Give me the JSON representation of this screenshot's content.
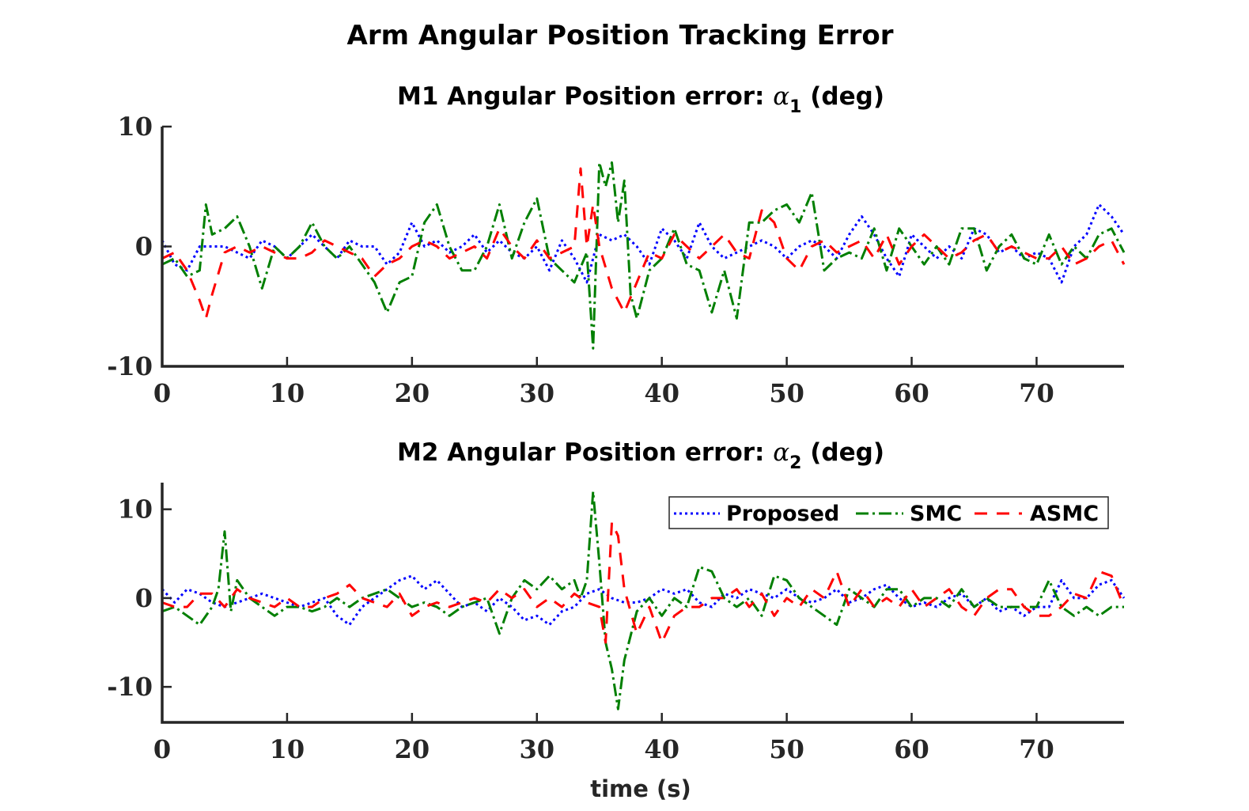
{
  "figure_title": "Arm Angular Position Tracking Error",
  "chart_data": [
    {
      "type": "line",
      "title_prefix": "M1 Angular Position error: ",
      "title_symbol": "α",
      "title_subscript": "1",
      "title_suffix": " (deg)",
      "xlabel": "",
      "ylabel": "",
      "xlim": [
        0,
        77
      ],
      "ylim": [
        -10,
        10
      ],
      "xticks": [
        0,
        10,
        20,
        30,
        40,
        50,
        60,
        70
      ],
      "yticks": [
        -10,
        0,
        10
      ],
      "xtick_labels": [
        "0",
        "10",
        "20",
        "30",
        "40",
        "50",
        "60",
        "70"
      ],
      "ytick_labels": [
        "-10",
        "0",
        "10"
      ],
      "grid": false,
      "legend": false,
      "series": [
        {
          "name": "Proposed",
          "color": "#0000ff",
          "style": "dotted",
          "x": [
            0,
            1,
            2,
            3,
            4,
            5,
            6,
            7,
            8,
            9,
            10,
            11,
            12,
            13,
            14,
            15,
            16,
            17,
            18,
            19,
            20,
            21,
            22,
            23,
            24,
            25,
            26,
            27,
            28,
            29,
            30,
            31,
            32,
            33,
            34,
            35,
            36,
            37,
            38,
            39,
            40,
            41,
            42,
            43,
            44,
            45,
            46,
            47,
            48,
            49,
            50,
            51,
            52,
            53,
            54,
            55,
            56,
            57,
            58,
            59,
            60,
            61,
            62,
            63,
            64,
            65,
            66,
            67,
            68,
            69,
            70,
            71,
            72,
            73,
            74,
            75,
            76,
            77
          ],
          "y": [
            0.5,
            -1.5,
            -2,
            0,
            0,
            0,
            -0.5,
            -1,
            0.5,
            0,
            -1,
            0,
            1,
            0,
            -1,
            0.5,
            0,
            0,
            -1.5,
            -0.5,
            2,
            0,
            0.5,
            -0.5,
            0,
            1,
            -0.5,
            0.5,
            -0.5,
            -1,
            0,
            -2,
            0.5,
            -1,
            -3,
            1,
            0.5,
            1,
            0,
            -1.5,
            1.5,
            0.5,
            -1,
            2,
            0,
            -1,
            -0.5,
            0,
            0.5,
            0,
            -1,
            0,
            0.5,
            0,
            -1,
            1,
            2.5,
            1,
            -1,
            -2.5,
            1,
            0,
            -1,
            0,
            -1,
            1.5,
            1,
            -0.5,
            0,
            -1,
            -0.5,
            -1,
            -3,
            0,
            1,
            3.5,
            2.5,
            1
          ]
        },
        {
          "name": "SMC",
          "color": "#007f00",
          "style": "dashdot",
          "x": [
            0,
            1,
            2,
            3,
            3.5,
            4,
            5,
            6,
            7,
            8,
            9,
            10,
            11,
            12,
            13,
            14,
            15,
            16,
            17,
            18,
            19,
            20,
            21,
            22,
            23,
            24,
            25,
            26,
            27,
            28,
            29,
            30,
            31,
            32,
            33,
            34,
            34.5,
            35,
            35.5,
            36,
            36.5,
            37,
            37.5,
            38,
            39,
            40,
            41,
            42,
            43,
            44,
            45,
            46,
            47,
            48,
            49,
            50,
            51,
            52,
            53,
            54,
            55,
            56,
            57,
            58,
            59,
            60,
            61,
            62,
            63,
            64,
            65,
            66,
            67,
            68,
            69,
            70,
            71,
            72,
            73,
            74,
            75,
            76,
            77
          ],
          "y": [
            -1.5,
            -1,
            -2.5,
            -2,
            3.5,
            1,
            1.5,
            2.5,
            0,
            -3.5,
            0,
            -1,
            0,
            2,
            0,
            -1,
            0,
            -1.5,
            -3,
            -5.5,
            -3,
            -2.5,
            2,
            3.5,
            0,
            -2,
            -2,
            0,
            3.5,
            -1,
            2,
            4,
            -1,
            -2,
            -3,
            -0.5,
            -8.5,
            7,
            5,
            7,
            2,
            5.5,
            -4,
            -6,
            -2,
            -1,
            1.5,
            -1.5,
            -2,
            -5.5,
            -2,
            -6,
            2,
            2,
            3,
            3.5,
            2,
            4.5,
            -2,
            -1,
            -0.5,
            -1,
            1.5,
            -2,
            1.5,
            0,
            -1.5,
            0,
            -1.5,
            1.5,
            1.5,
            -2,
            0,
            1,
            -1,
            -1.5,
            1,
            -1.5,
            0,
            -1,
            1,
            1.5,
            -0.5
          ]
        },
        {
          "name": "ASMC",
          "color": "#ff0000",
          "style": "dashed",
          "x": [
            0,
            1,
            2,
            3,
            3.5,
            4,
            5,
            6,
            7,
            8,
            9,
            10,
            11,
            12,
            13,
            14,
            15,
            16,
            17,
            18,
            19,
            20,
            21,
            22,
            23,
            24,
            25,
            26,
            27,
            28,
            29,
            30,
            31,
            32,
            33,
            33.5,
            34,
            34.5,
            35,
            36,
            37,
            38,
            39,
            40,
            41,
            42,
            43,
            44,
            45,
            46,
            47,
            48,
            49,
            50,
            51,
            52,
            53,
            54,
            55,
            56,
            57,
            58,
            59,
            60,
            61,
            62,
            63,
            64,
            65,
            66,
            67,
            68,
            69,
            70,
            71,
            72,
            73,
            74,
            75,
            76,
            77
          ],
          "y": [
            -1,
            -0.5,
            -2,
            -4.5,
            -6,
            -4,
            -0.5,
            0,
            -0.5,
            0,
            -0.5,
            -1,
            -1,
            -0.5,
            0.5,
            0,
            -0.5,
            -1,
            -2.5,
            -1.5,
            -1,
            0,
            0.5,
            0,
            -1,
            -0.5,
            0,
            -1,
            1.5,
            0,
            -1,
            0.5,
            -1,
            -0.5,
            0,
            6.5,
            0,
            3.5,
            0,
            -3.5,
            -5.5,
            -3,
            -0.5,
            -1,
            1,
            0,
            -1,
            0,
            1,
            -0.5,
            -1,
            3,
            2,
            -1,
            -2,
            0,
            0.5,
            -0.5,
            0,
            0.5,
            -1,
            1,
            -1.5,
            0,
            1,
            0,
            -1,
            -0.5,
            0.5,
            1,
            -0.5,
            0,
            -0.5,
            -1,
            -1,
            0,
            -1.5,
            -1,
            0,
            0.5,
            -1.5
          ]
        }
      ]
    },
    {
      "type": "line",
      "title_prefix": "M2 Angular Position error: ",
      "title_symbol": "α",
      "title_subscript": "2",
      "title_suffix": " (deg)",
      "xlabel": "time (s)",
      "ylabel": "",
      "xlim": [
        0,
        77
      ],
      "ylim": [
        -14,
        13
      ],
      "xticks": [
        0,
        10,
        20,
        30,
        40,
        50,
        60,
        70
      ],
      "yticks": [
        -10,
        0,
        10
      ],
      "xtick_labels": [
        "0",
        "10",
        "20",
        "30",
        "40",
        "50",
        "60",
        "70"
      ],
      "ytick_labels": [
        "-10",
        "0",
        "10"
      ],
      "grid": false,
      "legend": true,
      "legend_placement": "top-right, horizontal",
      "series": [
        {
          "name": "Proposed",
          "color": "#0000ff",
          "style": "dotted",
          "x": [
            0,
            1,
            2,
            3,
            4,
            5,
            6,
            7,
            8,
            9,
            10,
            11,
            12,
            13,
            14,
            15,
            16,
            17,
            18,
            19,
            20,
            21,
            22,
            23,
            24,
            25,
            26,
            27,
            28,
            29,
            30,
            31,
            32,
            33,
            34,
            35,
            36,
            37,
            38,
            39,
            40,
            41,
            42,
            43,
            44,
            45,
            46,
            47,
            48,
            49,
            50,
            51,
            52,
            53,
            54,
            55,
            56,
            57,
            58,
            59,
            60,
            61,
            62,
            63,
            64,
            65,
            66,
            67,
            68,
            69,
            70,
            71,
            72,
            73,
            74,
            75,
            76,
            77
          ],
          "y": [
            1,
            -0.5,
            1,
            0.5,
            -0.5,
            -1,
            -0.5,
            0,
            0.5,
            0,
            -0.5,
            -1,
            -0.5,
            0,
            -2,
            -3,
            -1,
            0,
            1,
            2,
            2.5,
            1,
            2,
            0.5,
            -1,
            -0.5,
            -1.5,
            0,
            -1,
            -2.5,
            -2,
            -3,
            -1.5,
            -1,
            0.5,
            1,
            0,
            -0.5,
            -0.5,
            0,
            1,
            0.5,
            1,
            -0.5,
            -1,
            0.5,
            0,
            1,
            0.5,
            0,
            1,
            0,
            -0.5,
            0,
            1,
            -0.5,
            0,
            1,
            1.5,
            0,
            -1,
            -0.5,
            -1,
            0,
            0.5,
            -1,
            0,
            -1.5,
            -1,
            -2,
            -1,
            -1,
            2,
            0,
            0,
            1.5,
            2,
            0
          ]
        },
        {
          "name": "SMC",
          "color": "#007f00",
          "style": "dashdot",
          "x": [
            0,
            1,
            2,
            3,
            4,
            4.5,
            5,
            5.5,
            6,
            7,
            8,
            9,
            10,
            11,
            12,
            13,
            14,
            15,
            16,
            17,
            18,
            19,
            20,
            21,
            22,
            23,
            24,
            25,
            26,
            27,
            28,
            29,
            30,
            31,
            32,
            33,
            33.5,
            34,
            34.5,
            35,
            35.5,
            36,
            36.5,
            37,
            38,
            39,
            40,
            41,
            42,
            43,
            44,
            45,
            46,
            47,
            48,
            49,
            50,
            51,
            52,
            53,
            54,
            55,
            56,
            57,
            58,
            59,
            60,
            61,
            62,
            63,
            64,
            65,
            66,
            67,
            68,
            69,
            70,
            71,
            72,
            73,
            74,
            75,
            76,
            77
          ],
          "y": [
            -1.5,
            -1,
            -2,
            -3,
            -1,
            1,
            7.5,
            -1.5,
            2,
            0,
            -1,
            -2,
            -1,
            -1,
            -1.5,
            -1,
            0,
            -1,
            0,
            0.5,
            1,
            0,
            -1,
            -0.5,
            -1,
            -2,
            -1,
            -0.5,
            0,
            -4,
            0,
            2,
            1,
            2.5,
            1,
            2,
            0,
            2,
            12,
            4,
            -5,
            -8,
            -12.5,
            -7,
            -1.5,
            0,
            -2,
            0,
            -1,
            3.5,
            3,
            0,
            -1,
            0,
            -2,
            2.5,
            2,
            0,
            -1,
            -2,
            -3,
            1,
            0,
            -1,
            1,
            1,
            -1,
            0,
            0,
            -1,
            1,
            -1,
            0,
            -1,
            -1,
            -1,
            -1,
            2,
            -1,
            -2,
            -1,
            -2,
            -1,
            -1
          ]
        },
        {
          "name": "ASMC",
          "color": "#ff0000",
          "style": "dashed",
          "x": [
            0,
            1,
            2,
            3,
            4,
            5,
            6,
            7,
            8,
            9,
            10,
            11,
            12,
            13,
            14,
            15,
            16,
            17,
            18,
            19,
            20,
            21,
            22,
            23,
            24,
            25,
            26,
            27,
            28,
            29,
            30,
            31,
            32,
            33,
            34,
            35,
            35.5,
            36,
            36.5,
            37,
            38,
            39,
            40,
            41,
            42,
            43,
            44,
            45,
            46,
            47,
            48,
            49,
            50,
            51,
            52,
            53,
            54,
            55,
            56,
            57,
            58,
            59,
            60,
            61,
            62,
            63,
            64,
            65,
            66,
            67,
            68,
            69,
            70,
            71,
            72,
            73,
            74,
            75,
            76,
            77
          ],
          "y": [
            -0.5,
            -1,
            -1,
            0.5,
            0.5,
            -1,
            1,
            0,
            -0.5,
            -1,
            0,
            -1,
            -1,
            0,
            0.5,
            1.5,
            0,
            -0.5,
            -1,
            0.5,
            -2,
            -1,
            -0.5,
            -1,
            -0.5,
            0,
            -0.5,
            1,
            0,
            1,
            -1,
            0,
            -1,
            0.5,
            -0.5,
            -1,
            -5,
            8.5,
            7,
            1,
            -4,
            -1,
            -5,
            -2,
            -1,
            -1,
            0,
            0,
            1,
            -1,
            0.5,
            -2,
            0,
            -1,
            1,
            0,
            3,
            -1,
            1,
            -1,
            0,
            -1,
            1,
            -1,
            0,
            1,
            -1,
            -2,
            0,
            1,
            1,
            -1,
            -2,
            -2,
            -1,
            0.5,
            0,
            3,
            2.5,
            -1
          ]
        }
      ]
    }
  ]
}
